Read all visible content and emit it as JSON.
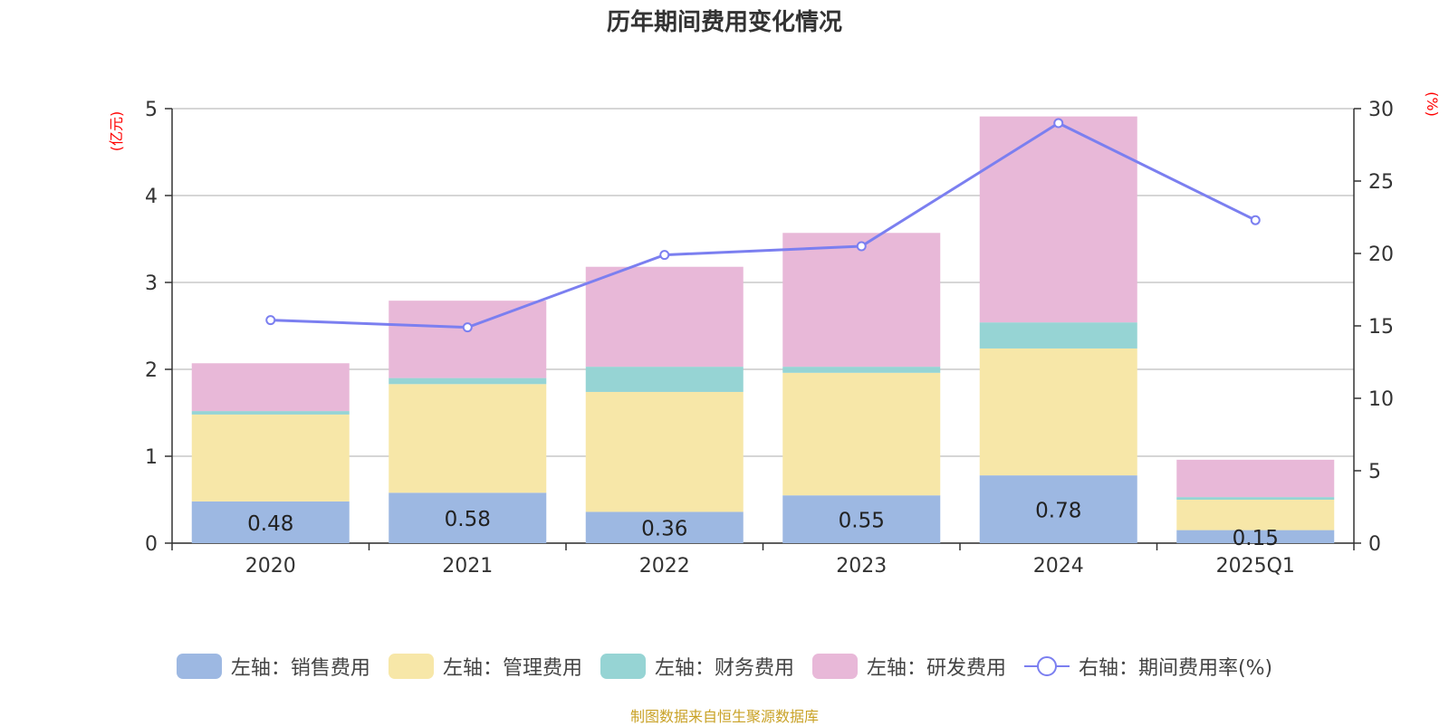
{
  "chart_data": {
    "type": "bar",
    "stacked": true,
    "title": "历年期间费用变化情况",
    "categories": [
      "2020",
      "2021",
      "2022",
      "2023",
      "2024",
      "2025Q1"
    ],
    "left_axis": {
      "unit": "(亿元)",
      "ylim": [
        0,
        5
      ],
      "ticks": [
        "0",
        "1",
        "2",
        "3",
        "4",
        "5"
      ]
    },
    "right_axis": {
      "unit": "(%)",
      "ylim": [
        0,
        30
      ],
      "ticks": [
        "0",
        "5",
        "10",
        "15",
        "20",
        "25",
        "30"
      ]
    },
    "series": [
      {
        "name": "左轴：销售费用",
        "type": "bar",
        "axis": "left",
        "color": "#9db8e2",
        "values": [
          0.48,
          0.58,
          0.36,
          0.55,
          0.78,
          0.15
        ],
        "labels": [
          "0.48",
          "0.58",
          "0.36",
          "0.55",
          "0.78",
          "0.15"
        ]
      },
      {
        "name": "左轴：管理费用",
        "type": "bar",
        "axis": "left",
        "color": "#f7e7a8",
        "values": [
          1.0,
          1.25,
          1.38,
          1.41,
          1.46,
          0.35
        ]
      },
      {
        "name": "左轴：财务费用",
        "type": "bar",
        "axis": "left",
        "color": "#96d4d4",
        "values": [
          0.04,
          0.07,
          0.29,
          0.07,
          0.3,
          0.03
        ]
      },
      {
        "name": "左轴：研发费用",
        "type": "bar",
        "axis": "left",
        "color": "#e8b8d8",
        "values": [
          0.55,
          0.89,
          1.15,
          1.54,
          2.37,
          0.43
        ]
      },
      {
        "name": "右轴：期间费用率(%)",
        "type": "line",
        "axis": "right",
        "color": "#7b7ff0",
        "values": [
          15.4,
          14.9,
          19.9,
          20.5,
          29.0,
          22.3
        ]
      }
    ]
  },
  "source": "制图数据来自恒生聚源数据库"
}
